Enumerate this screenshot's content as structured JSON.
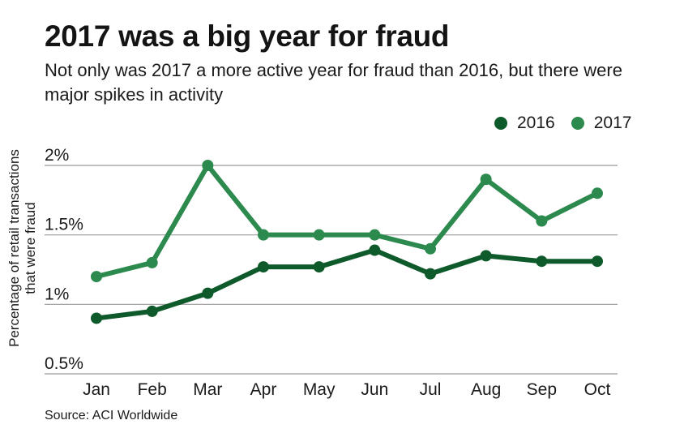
{
  "title": "2017 was a big year for fraud",
  "subtitle": "Not only was 2017 a more active year for fraud than 2016, but there were major spikes in activity",
  "source": "Source: ACI Worldwide",
  "colors": {
    "series_2016": "#0f5a2a",
    "series_2017": "#2d8a4e",
    "grid": "#9a9a9a"
  },
  "legend": [
    {
      "label": "2016",
      "color": "#0f5a2a"
    },
    {
      "label": "2017",
      "color": "#2d8a4e"
    }
  ],
  "chart_data": {
    "type": "line",
    "title": "2017 was a big year for fraud",
    "ylabel": "Percentage of retail transactions that were fraud",
    "xlabel": "",
    "categories": [
      "Jan",
      "Feb",
      "Mar",
      "Apr",
      "May",
      "Jun",
      "Jul",
      "Aug",
      "Sep",
      "Oct"
    ],
    "y_ticks": [
      {
        "value": 2.0,
        "label": "2%"
      },
      {
        "value": 1.5,
        "label": "1.5%"
      },
      {
        "value": 1.0,
        "label": "1%"
      },
      {
        "value": 0.5,
        "label": "0.5%"
      }
    ],
    "ylim": [
      0.5,
      2.0
    ],
    "grid": true,
    "legend_position": "top-right",
    "series": [
      {
        "name": "2016",
        "color": "#0f5a2a",
        "values": [
          0.9,
          0.95,
          1.08,
          1.27,
          1.27,
          1.39,
          1.22,
          1.35,
          1.31,
          1.31
        ]
      },
      {
        "name": "2017",
        "color": "#2d8a4e",
        "values": [
          1.2,
          1.3,
          2.0,
          1.5,
          1.5,
          1.5,
          1.4,
          1.9,
          1.6,
          1.8
        ]
      }
    ]
  }
}
